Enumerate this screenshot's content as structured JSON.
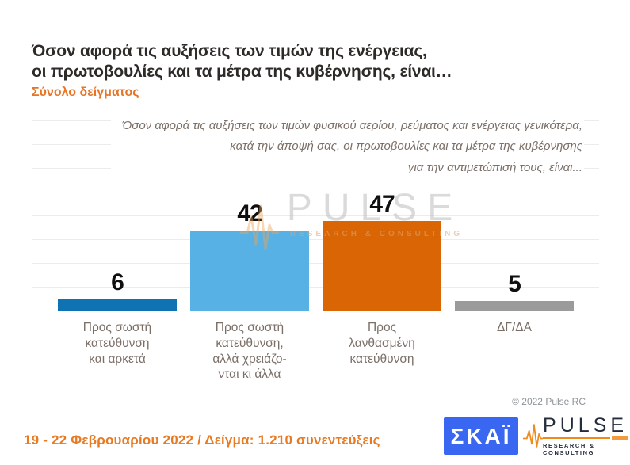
{
  "header": {
    "title_line1": "Όσον αφορά τις αυξήσεις των τιμών της ενέργειας,",
    "title_line2": "οι πρωτοβουλίες και τα μέτρα της κυβέρνησης, είναι…",
    "subtitle": "Σύνολο δείγματος"
  },
  "question_text": "Όσον αφορά τις αυξήσεις των τιμών φυσικού αερίου, ρεύματος και ενέργειας γενικότερα,\nκατά την άποψή σας, οι πρωτοβουλίες και τα μέτρα της κυβέρνησης\nγια την αντιμετώπισή τους, είναι...",
  "chart_data": {
    "type": "bar",
    "title": "Όσον αφορά τις αυξήσεις των τιμών της ενέργειας, οι πρωτοβουλίες και τα μέτρα της κυβέρνησης, είναι…",
    "subtitle": "Σύνολο δείγματος",
    "categories": [
      "Προς σωστή\nκατεύθυνση\nκαι αρκετά",
      "Προς σωστή\nκατεύθυνση,\nαλλά χρειάζο-\nνται κι άλλα",
      "Προς\nλανθασμένη\nκατεύθυνση",
      "ΔΓ/ΔΑ"
    ],
    "values": [
      6,
      42,
      47,
      5
    ],
    "colors": [
      "#0f72b2",
      "#57b1e5",
      "#d96504",
      "#9b9b9b"
    ],
    "xlabel": "",
    "ylabel": "",
    "ylim": [
      0,
      100
    ],
    "grid": true,
    "gridline_interval": 12.5,
    "legend": false,
    "value_labels": true
  },
  "watermark": {
    "word": "PULSE",
    "sub": "RESEARCH & CONSULTING"
  },
  "footer": {
    "copyright": "© 2022 Pulse RC",
    "survey_info": "19 - 22  Φεβρουαρίου  2022  /  Δείγμα:  1.210 συνεντεύξεις",
    "skai_logo_text": "ΣΚΑΪ",
    "pulse_logo_text": "PULSE",
    "pulse_logo_sub": "RESEARCH & CONSULTING"
  },
  "accent_colors": {
    "orange_accent": "#e87425",
    "skai_blue": "#3a67f2",
    "pulse_orange": "#f08a1d"
  }
}
